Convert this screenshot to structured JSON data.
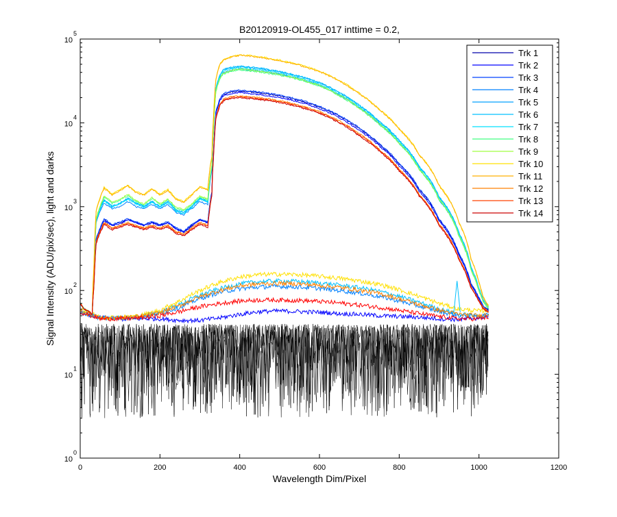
{
  "chart_data": {
    "type": "line",
    "title": "B20120919-OL455_017 inttime = 0.2,",
    "xlabel": "Wavelength Dim/Pixel",
    "ylabel": "Signal Intensity (ADU/pix/sec), light and darks",
    "xlim": [
      0,
      1200
    ],
    "ylim": [
      1,
      100000
    ],
    "yscale": "log",
    "x_ticks": [
      {
        "value": 0,
        "label": "0"
      },
      {
        "value": 200,
        "label": "200"
      },
      {
        "value": 400,
        "label": "400"
      },
      {
        "value": 600,
        "label": "600"
      },
      {
        "value": 800,
        "label": "800"
      },
      {
        "value": 1000,
        "label": "1000"
      },
      {
        "value": 1200,
        "label": "1200"
      }
    ],
    "y_ticks": [
      {
        "value": 1,
        "base": "10",
        "exp": "0"
      },
      {
        "value": 10,
        "base": "10",
        "exp": "1"
      },
      {
        "value": 100,
        "base": "10",
        "exp": "2"
      },
      {
        "value": 1000,
        "base": "10",
        "exp": "3"
      },
      {
        "value": 10000,
        "base": "10",
        "exp": "4"
      },
      {
        "value": 100000,
        "base": "10",
        "exp": "5"
      }
    ],
    "grid": false,
    "legend_position": "top-right",
    "light_x": [
      0,
      10,
      25,
      30,
      35,
      40,
      60,
      80,
      100,
      120,
      140,
      160,
      180,
      200,
      220,
      240,
      260,
      280,
      300,
      320,
      330,
      335,
      340,
      350,
      360,
      380,
      400,
      420,
      450,
      500,
      550,
      600,
      650,
      700,
      750,
      800,
      850,
      900,
      950,
      980,
      1000,
      1010,
      1020,
      1024
    ],
    "series": [
      {
        "name": "Trk 1",
        "color": "#0000aa",
        "peak": 24000,
        "values": [
          70,
          60,
          55,
          50,
          130,
          400,
          700,
          600,
          650,
          700,
          650,
          600,
          650,
          600,
          650,
          550,
          500,
          600,
          700,
          650,
          1500,
          5000,
          13000,
          19000,
          22000,
          23500,
          24000,
          23500,
          22800,
          21000,
          18500,
          15500,
          12000,
          8500,
          5500,
          3200,
          1600,
          700,
          270,
          120,
          80,
          65,
          60,
          58
        ]
      },
      {
        "name": "Trk 2",
        "color": "#0000ff",
        "peak": 23000,
        "values": [
          70,
          60,
          55,
          50,
          130,
          380,
          680,
          590,
          630,
          690,
          640,
          590,
          640,
          590,
          640,
          540,
          490,
          590,
          690,
          640,
          1450,
          4800,
          12500,
          18300,
          21100,
          22500,
          23000,
          22500,
          21800,
          20100,
          17700,
          14800,
          11500,
          8100,
          5300,
          3050,
          1530,
          670,
          260,
          115,
          78,
          64,
          59,
          57
        ]
      },
      {
        "name": "Trk 3",
        "color": "#0040ff",
        "peak": 24500,
        "values": [
          70,
          60,
          55,
          50,
          130,
          410,
          720,
          610,
          660,
          720,
          660,
          610,
          660,
          610,
          660,
          560,
          510,
          610,
          710,
          660,
          1520,
          5100,
          13300,
          19400,
          22500,
          24000,
          24500,
          24000,
          23300,
          21400,
          18900,
          15800,
          12200,
          8700,
          5600,
          3270,
          1630,
          710,
          275,
          122,
          82,
          66,
          61,
          59
        ]
      },
      {
        "name": "Trk 4",
        "color": "#0080ff",
        "peak": 44000,
        "values": [
          70,
          60,
          55,
          50,
          180,
          650,
          1100,
          950,
          1000,
          1150,
          1000,
          950,
          1050,
          950,
          1050,
          850,
          800,
          950,
          1150,
          1050,
          2700,
          9000,
          24000,
          35000,
          40000,
          42500,
          44000,
          43000,
          41500,
          38000,
          33500,
          28000,
          21500,
          15000,
          9700,
          5700,
          2800,
          1200,
          450,
          180,
          100,
          75,
          65,
          62
        ]
      },
      {
        "name": "Trk 5",
        "color": "#00a0ff",
        "peak": 47000,
        "values": [
          70,
          60,
          55,
          50,
          190,
          700,
          1200,
          1000,
          1100,
          1250,
          1100,
          1000,
          1150,
          1000,
          1150,
          900,
          850,
          1000,
          1250,
          1150,
          2900,
          9600,
          25500,
          37000,
          43000,
          45500,
          47000,
          46000,
          44500,
          40500,
          35800,
          30000,
          23000,
          16000,
          10300,
          6100,
          3000,
          1300,
          480,
          190,
          105,
          78,
          66,
          63
        ]
      },
      {
        "name": "Trk 6",
        "color": "#00c0ff",
        "peak": 47500,
        "values": [
          70,
          60,
          55,
          50,
          190,
          710,
          1210,
          1010,
          1110,
          1260,
          1110,
          1010,
          1160,
          1010,
          1160,
          910,
          860,
          1010,
          1260,
          1160,
          2920,
          9700,
          25700,
          37400,
          43400,
          46000,
          47500,
          46500,
          45000,
          41000,
          36200,
          30300,
          23200,
          16200,
          10400,
          6150,
          3020,
          1310,
          485,
          192,
          106,
          79,
          67,
          64
        ]
      },
      {
        "name": "Trk 7",
        "color": "#00e0ff",
        "peak": 45500,
        "values": [
          70,
          60,
          55,
          50,
          185,
          680,
          1170,
          980,
          1080,
          1220,
          1080,
          980,
          1120,
          980,
          1120,
          880,
          830,
          980,
          1220,
          1120,
          2850,
          9400,
          25000,
          36200,
          42000,
          44000,
          45500,
          44500,
          43000,
          39200,
          34600,
          29000,
          22200,
          15500,
          10000,
          5900,
          2900,
          1250,
          470,
          185,
          103,
          77,
          66,
          63
        ]
      },
      {
        "name": "Trk 8",
        "color": "#40ff80",
        "peak": 43000,
        "values": [
          70,
          60,
          55,
          50,
          180,
          700,
          1300,
          1100,
          1200,
          1350,
          1150,
          1050,
          1250,
          1050,
          1200,
          950,
          900,
          1050,
          1300,
          1200,
          3000,
          9000,
          23000,
          33500,
          38500,
          41500,
          43000,
          42000,
          40500,
          37000,
          32700,
          27400,
          21000,
          14700,
          9500,
          5600,
          2750,
          1200,
          440,
          175,
          98,
          74,
          64,
          61
        ]
      },
      {
        "name": "Trk 9",
        "color": "#a0ff40",
        "peak": 44000,
        "values": [
          70,
          60,
          55,
          50,
          185,
          720,
          1340,
          1130,
          1240,
          1390,
          1180,
          1080,
          1290,
          1080,
          1240,
          980,
          930,
          1080,
          1340,
          1240,
          3100,
          9300,
          23600,
          34300,
          39500,
          42500,
          44000,
          43000,
          41500,
          37900,
          33500,
          28000,
          21500,
          15000,
          9700,
          5700,
          2800,
          1220,
          450,
          178,
          100,
          75,
          65,
          62
        ]
      },
      {
        "name": "Trk 10",
        "color": "#ffe000",
        "peak": 65000,
        "values": [
          70,
          60,
          55,
          50,
          220,
          900,
          1700,
          1400,
          1600,
          1800,
          1500,
          1400,
          1650,
          1400,
          1600,
          1250,
          1150,
          1400,
          1750,
          1600,
          4000,
          13000,
          33000,
          50000,
          58000,
          62000,
          65000,
          64000,
          61500,
          56000,
          49500,
          41500,
          32000,
          22500,
          14500,
          8500,
          4200,
          1800,
          650,
          240,
          125,
          85,
          70,
          66
        ]
      },
      {
        "name": "Trk 11",
        "color": "#ffb000",
        "peak": 64000,
        "values": [
          70,
          60,
          55,
          50,
          215,
          880,
          1660,
          1370,
          1560,
          1760,
          1470,
          1370,
          1610,
          1370,
          1560,
          1220,
          1120,
          1370,
          1710,
          1560,
          3900,
          12700,
          32400,
          49200,
          57000,
          61000,
          64000,
          63000,
          60500,
          55100,
          48700,
          40800,
          31500,
          22100,
          14300,
          8350,
          4130,
          1770,
          640,
          236,
          123,
          84,
          69,
          65
        ]
      },
      {
        "name": "Trk 12",
        "color": "#ff8000",
        "peak": 21000,
        "values": [
          70,
          60,
          55,
          50,
          125,
          380,
          650,
          560,
          600,
          650,
          600,
          560,
          600,
          560,
          600,
          510,
          470,
          560,
          650,
          600,
          1400,
          4500,
          11500,
          16800,
          19300,
          20500,
          21000,
          20600,
          20000,
          18400,
          16200,
          13600,
          10500,
          7400,
          4800,
          2800,
          1400,
          620,
          240,
          110,
          76,
          63,
          58,
          56
        ]
      },
      {
        "name": "Trk 13",
        "color": "#ff4000",
        "peak": 20500,
        "values": [
          70,
          60,
          55,
          50,
          120,
          370,
          630,
          545,
          585,
          630,
          585,
          545,
          585,
          545,
          585,
          495,
          460,
          545,
          630,
          585,
          1370,
          4400,
          11200,
          16400,
          18800,
          20000,
          20500,
          20100,
          19500,
          17900,
          15800,
          13300,
          10200,
          7200,
          4700,
          2730,
          1370,
          605,
          235,
          108,
          75,
          62,
          57,
          55
        ]
      },
      {
        "name": "Trk 14",
        "color": "#cc0000",
        "peak": 20000,
        "values": [
          70,
          60,
          55,
          50,
          118,
          360,
          610,
          530,
          570,
          610,
          570,
          530,
          570,
          530,
          570,
          480,
          450,
          530,
          610,
          570,
          1340,
          4300,
          10900,
          16000,
          18400,
          19500,
          20000,
          19600,
          19000,
          17500,
          15400,
          13000,
          10000,
          7000,
          4600,
          2660,
          1340,
          590,
          230,
          106,
          74,
          61,
          56,
          54
        ]
      }
    ],
    "low_band_x": [
      0,
      50,
      100,
      150,
      200,
      250,
      300,
      350,
      400,
      450,
      500,
      550,
      600,
      650,
      700,
      750,
      800,
      850,
      900,
      950,
      1000,
      1024
    ],
    "low_band_series": [
      {
        "color": "#0000ff",
        "values": [
          55,
          47,
          46,
          46,
          46,
          44,
          44,
          47,
          52,
          56,
          57,
          56,
          55,
          53,
          52,
          50,
          49,
          48,
          46,
          45,
          47,
          50
        ]
      },
      {
        "color": "#00c0ff",
        "values": [
          55,
          47,
          47,
          49,
          55,
          68,
          88,
          105,
          120,
          128,
          130,
          128,
          123,
          116,
          108,
          98,
          85,
          72,
          60,
          52,
          50,
          52
        ]
      },
      {
        "color": "#0080ff",
        "values": [
          55,
          47,
          47,
          48,
          53,
          63,
          80,
          95,
          105,
          110,
          112,
          110,
          106,
          100,
          93,
          85,
          75,
          65,
          56,
          50,
          49,
          51
        ]
      },
      {
        "color": "#ffe000",
        "values": [
          60,
          48,
          48,
          50,
          58,
          75,
          100,
          125,
          145,
          155,
          157,
          154,
          148,
          140,
          130,
          118,
          102,
          85,
          70,
          60,
          57,
          58
        ]
      },
      {
        "color": "#ff8000",
        "values": [
          57,
          47,
          47,
          49,
          54,
          66,
          84,
          100,
          114,
          120,
          122,
          120,
          115,
          109,
          101,
          92,
          80,
          68,
          58,
          52,
          50,
          52
        ]
      },
      {
        "color": "#ff0000",
        "values": [
          55,
          46,
          46,
          47,
          50,
          56,
          64,
          70,
          75,
          77,
          77,
          76,
          74,
          71,
          67,
          63,
          58,
          53,
          49,
          46,
          46,
          48
        ]
      }
    ],
    "dark_band": {
      "color": "#000000",
      "x_range": [
        0,
        1024
      ],
      "level_range": [
        3,
        40
      ]
    },
    "spike": {
      "x": 945,
      "value": 130
    }
  }
}
